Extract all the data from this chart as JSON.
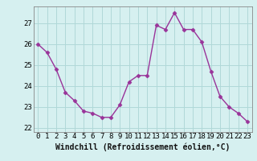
{
  "xlabel": "Windchill (Refroidissement éolien,°C)",
  "hours": [
    0,
    1,
    2,
    3,
    4,
    5,
    6,
    7,
    8,
    9,
    10,
    11,
    12,
    13,
    14,
    15,
    16,
    17,
    18,
    19,
    20,
    21,
    22,
    23
  ],
  "values": [
    26.0,
    25.6,
    24.8,
    23.7,
    23.3,
    22.8,
    22.7,
    22.5,
    22.5,
    23.1,
    24.2,
    24.5,
    24.5,
    26.9,
    26.7,
    27.5,
    26.7,
    26.7,
    26.1,
    24.7,
    23.5,
    23.0,
    22.7,
    22.3
  ],
  "line_color": "#993399",
  "marker": "D",
  "marker_size": 2.5,
  "bg_color": "#d6f0f0",
  "grid_color": "#b0d8d8",
  "axis_color": "#888888",
  "ylim": [
    21.8,
    27.8
  ],
  "yticks": [
    22,
    23,
    24,
    25,
    26,
    27
  ],
  "xticks": [
    0,
    1,
    2,
    3,
    4,
    5,
    6,
    7,
    8,
    9,
    10,
    11,
    12,
    13,
    14,
    15,
    16,
    17,
    18,
    19,
    20,
    21,
    22,
    23
  ],
  "tick_fontsize": 6.5,
  "xlabel_fontsize": 7.0,
  "line_width": 1.0
}
